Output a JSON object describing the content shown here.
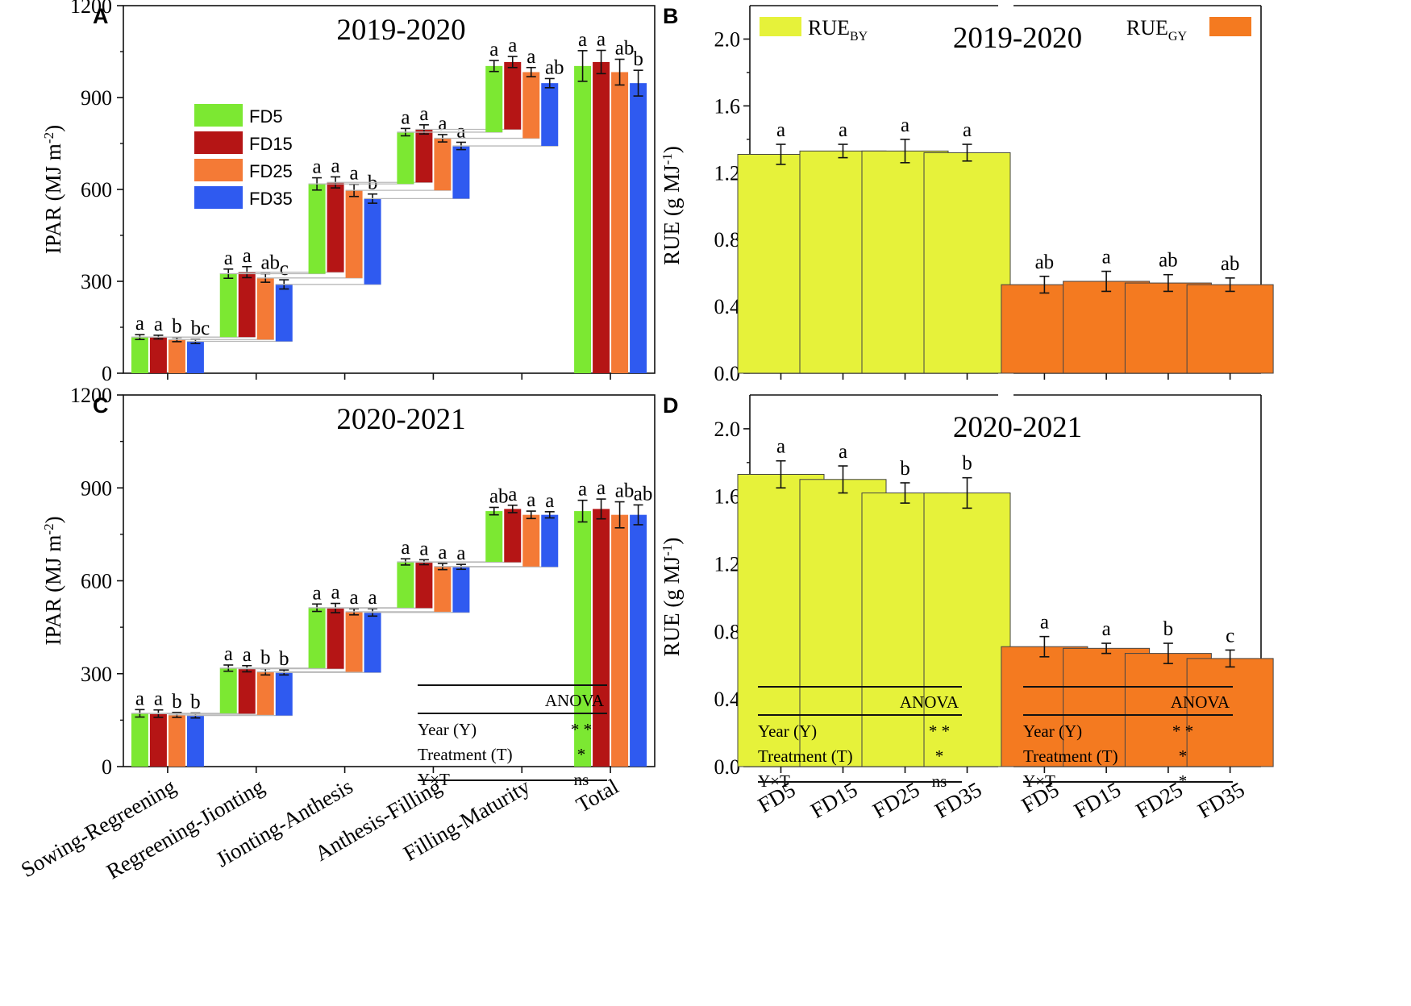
{
  "colors": {
    "FD5": "#7ce832",
    "FD15": "#b51515",
    "FD25": "#f47a36",
    "FD35": "#2f5af0",
    "RUE_BY": "#e6f23a",
    "RUE_GY": "#f47a20"
  },
  "treatments": [
    "FD5",
    "FD15",
    "FD25",
    "FD35"
  ],
  "chart_data": [
    {
      "panel": "A",
      "type": "bar",
      "subtype": "waterfall",
      "title": "2019-2020",
      "ylabel_main": "IPAR (MJ m",
      "ylabel_sup": "-2",
      "ylabel_close": ")",
      "ylim": [
        0,
        1200
      ],
      "yticks": [
        0,
        300,
        600,
        900,
        1200
      ],
      "categories": [
        "Sowing-Regreening",
        "Regreening-Jionting",
        "Jionting-Anthesis",
        "Anthesis-Filling",
        "Filling-Maturity",
        "Total"
      ],
      "legend": [
        "FD5",
        "FD15",
        "FD25",
        "FD35"
      ],
      "series": [
        {
          "name": "FD5",
          "cumulative": [
            118,
            325,
            618,
            787,
            1003,
            1003
          ],
          "error": [
            8,
            15,
            20,
            12,
            18,
            50
          ],
          "letters": [
            "a",
            "a",
            "a",
            "a",
            "a",
            "a"
          ]
        },
        {
          "name": "FD15",
          "cumulative": [
            118,
            330,
            623,
            796,
            1016,
            1016
          ],
          "error": [
            6,
            18,
            18,
            15,
            18,
            38
          ],
          "letters": [
            "a",
            "a",
            "a",
            "a",
            "a",
            "a"
          ]
        },
        {
          "name": "FD25",
          "cumulative": [
            110,
            311,
            597,
            767,
            983,
            983
          ],
          "error": [
            7,
            14,
            20,
            12,
            15,
            42
          ],
          "letters": [
            "b",
            "ab",
            "a",
            "a",
            "a",
            "ab"
          ]
        },
        {
          "name": "FD35",
          "cumulative": [
            104,
            290,
            570,
            742,
            947,
            947
          ],
          "error": [
            7,
            15,
            15,
            12,
            15,
            42
          ],
          "letters": [
            "bc",
            "c",
            "b",
            "a",
            "ab",
            "b"
          ]
        }
      ]
    },
    {
      "panel": "B",
      "type": "bar",
      "title": "2019-2020",
      "ylabel_main": "RUE (g MJ",
      "ylabel_sup": "-1",
      "ylabel_close": ")",
      "ylim": [
        0,
        2.2
      ],
      "yticks": [
        "0.0",
        "0.4",
        "0.8",
        "1.2",
        "1.6",
        "2.0"
      ],
      "categories": [
        "FD5",
        "FD15",
        "FD25",
        "FD35"
      ],
      "series": [
        {
          "name": "RUE",
          "sub": "BY",
          "values": [
            1.31,
            1.33,
            1.33,
            1.32
          ],
          "error": [
            0.06,
            0.04,
            0.07,
            0.05
          ],
          "letters": [
            "a",
            "a",
            "a",
            "a"
          ]
        },
        {
          "name": "RUE",
          "sub": "GY",
          "values": [
            0.53,
            0.55,
            0.54,
            0.53
          ],
          "error": [
            0.05,
            0.06,
            0.05,
            0.04
          ],
          "letters": [
            "ab",
            "a",
            "ab",
            "ab"
          ]
        }
      ]
    },
    {
      "panel": "C",
      "type": "bar",
      "subtype": "waterfall",
      "title": "2020-2021",
      "ylabel_main": "IPAR (MJ m",
      "ylabel_sup": "-2",
      "ylabel_close": ")",
      "ylim": [
        0,
        1200
      ],
      "yticks": [
        0,
        300,
        600,
        900,
        1200
      ],
      "categories": [
        "Sowing-Regreening",
        "Regreening-Jionting",
        "Jionting-Anthesis",
        "Anthesis-Filling",
        "Filling-Maturity",
        "Total"
      ],
      "series": [
        {
          "name": "FD5",
          "cumulative": [
            172,
            318,
            513,
            661,
            825,
            825
          ],
          "error": [
            12,
            10,
            12,
            10,
            12,
            35
          ],
          "letters": [
            "a",
            "a",
            "a",
            "a",
            "ab",
            "a"
          ]
        },
        {
          "name": "FD15",
          "cumulative": [
            171,
            316,
            512,
            660,
            832,
            832
          ],
          "error": [
            12,
            10,
            15,
            8,
            12,
            32
          ],
          "letters": [
            "a",
            "a",
            "a",
            "a",
            "a",
            "a"
          ]
        },
        {
          "name": "FD25",
          "cumulative": [
            167,
            306,
            500,
            646,
            813,
            813
          ],
          "error": [
            8,
            10,
            10,
            10,
            12,
            42
          ],
          "letters": [
            "b",
            "b",
            "a",
            "a",
            "a",
            "ab"
          ]
        },
        {
          "name": "FD35",
          "cumulative": [
            165,
            304,
            498,
            645,
            813,
            813
          ],
          "error": [
            8,
            8,
            12,
            8,
            10,
            32
          ],
          "letters": [
            "b",
            "b",
            "a",
            "a",
            "a",
            "ab"
          ]
        }
      ],
      "anova": {
        "header": "ANOVA",
        "rows": [
          {
            "label": "Year (Y)",
            "value": "* *"
          },
          {
            "label": "Treatment (T)",
            "value": "*"
          },
          {
            "label": "Y×T",
            "value": "ns"
          }
        ]
      }
    },
    {
      "panel": "D",
      "type": "bar",
      "title": "2020-2021",
      "ylabel_main": "RUE (g MJ",
      "ylabel_sup": "-1",
      "ylabel_close": ")",
      "ylim": [
        0,
        2.2
      ],
      "yticks": [
        "0.0",
        "0.4",
        "0.8",
        "1.2",
        "1.6",
        "2.0"
      ],
      "categories": [
        "FD5",
        "FD15",
        "FD25",
        "FD35"
      ],
      "series": [
        {
          "name": "RUE",
          "sub": "BY",
          "values": [
            1.73,
            1.7,
            1.62,
            1.62
          ],
          "error": [
            0.08,
            0.08,
            0.06,
            0.09
          ],
          "letters": [
            "a",
            "a",
            "b",
            "b"
          ],
          "anova": {
            "header": "ANOVA",
            "rows": [
              {
                "label": "Year (Y)",
                "value": "* *"
              },
              {
                "label": "Treatment (T)",
                "value": "*"
              },
              {
                "label": "Y×T",
                "value": "ns"
              }
            ]
          }
        },
        {
          "name": "RUE",
          "sub": "GY",
          "values": [
            0.71,
            0.7,
            0.67,
            0.64
          ],
          "error": [
            0.06,
            0.03,
            0.06,
            0.05
          ],
          "letters": [
            "a",
            "a",
            "b",
            "c"
          ],
          "anova": {
            "header": "ANOVA",
            "rows": [
              {
                "label": "Year (Y)",
                "value": "* *"
              },
              {
                "label": "Treatment (T)",
                "value": "*"
              },
              {
                "label": "Y×T",
                "value": "*"
              }
            ]
          }
        }
      ]
    }
  ]
}
